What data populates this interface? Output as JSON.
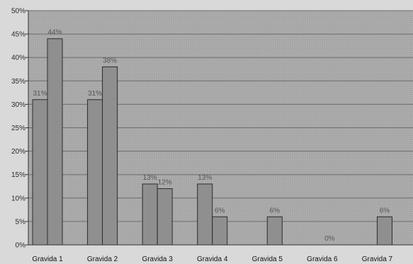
{
  "chart_data": {
    "type": "bar",
    "title": "",
    "xlabel": "",
    "ylabel": "",
    "categories": [
      "Gravida 1",
      "Gravida 2",
      "Gravida 3",
      "Gravida 4",
      "Gravida 5",
      "Gravida 6",
      "Gravida 7"
    ],
    "series": [
      {
        "values": [
          31,
          31,
          13,
          13,
          0,
          0,
          0
        ],
        "labels": [
          "31%",
          "31%",
          "13%",
          "13%",
          "",
          "",
          ""
        ]
      },
      {
        "values": [
          44,
          38,
          12,
          6,
          6,
          0,
          6
        ],
        "labels": [
          "44%",
          "38%",
          "12%",
          "6%",
          "6%",
          "0%",
          "6%"
        ]
      }
    ],
    "ylim": [
      0,
      50
    ],
    "yticks": [
      "0%",
      "5%",
      "10%",
      "15%",
      "20%",
      "25%",
      "30%",
      "35%",
      "40%",
      "45%",
      "50%"
    ],
    "grid": true,
    "legend": "none",
    "colors": {
      "plot_bg": "#a7a7a7",
      "bar_fill": "#8f8f8f",
      "bar_stroke": "#2b2b2b",
      "grid": "#6e6e6e",
      "page_bg": "#d9d9d9"
    }
  }
}
